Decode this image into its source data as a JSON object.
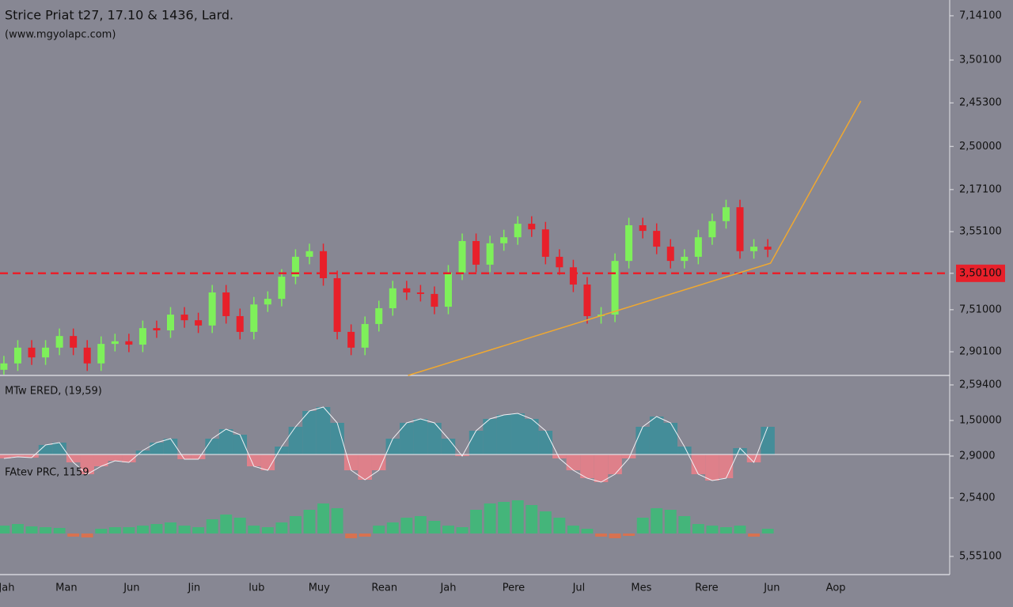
{
  "chart_data": [
    {
      "type": "candlestick",
      "title": "Strice Priat t27, 17.10 & 1436, Lard.",
      "subtitle": "(www.mgyolapc.com)",
      "open": [
        1.5,
        3.2,
        7.4,
        4.8,
        7.4,
        10.5,
        7.4,
        3.2,
        8.4,
        9.1,
        8.2,
        12.6,
        12.0,
        16.2,
        14.7,
        13.3,
        22.1,
        15.8,
        11.6,
        18.9,
        20.4,
        26.3,
        31.6,
        33.1,
        25.9,
        11.6,
        7.4,
        13.7,
        17.9,
        23.2,
        22.1,
        21.7,
        18.3,
        27.4,
        35.8,
        29.5,
        35.2,
        36.8,
        40.4,
        38.9,
        31.6,
        28.8,
        24.2,
        15.8,
        16.2,
        30.5,
        40.0,
        38.5,
        34.3,
        30.5,
        31.6,
        36.8,
        41.1,
        44.8,
        33.1,
        34.3
      ],
      "high": [
        5.2,
        9.4,
        9.4,
        9.4,
        12.5,
        12.5,
        9.4,
        10.4,
        11.1,
        11.1,
        14.6,
        14.6,
        18.2,
        18.2,
        16.7,
        24.1,
        24.1,
        17.8,
        20.9,
        22.4,
        28.3,
        33.6,
        35.1,
        35.1,
        27.9,
        13.6,
        15.7,
        19.9,
        25.2,
        25.2,
        24.1,
        23.7,
        29.4,
        37.8,
        37.8,
        37.2,
        38.8,
        42.4,
        42.4,
        40.9,
        33.6,
        30.8,
        26.2,
        18.2,
        32.5,
        42.0,
        42.0,
        40.5,
        36.3,
        33.6,
        38.8,
        43.1,
        46.8,
        46.8,
        36.3,
        36.3
      ],
      "low": [
        0.2,
        1.2,
        2.8,
        2.8,
        5.4,
        5.4,
        1.2,
        1.2,
        6.4,
        6.2,
        6.2,
        10.0,
        10.0,
        12.7,
        11.3,
        11.3,
        13.8,
        9.6,
        9.6,
        16.9,
        18.4,
        24.3,
        29.6,
        23.9,
        9.6,
        5.4,
        5.4,
        11.7,
        15.9,
        20.1,
        19.7,
        16.3,
        16.3,
        25.4,
        27.5,
        27.5,
        33.2,
        34.8,
        36.9,
        29.6,
        26.8,
        22.2,
        13.8,
        13.8,
        14.2,
        28.5,
        36.5,
        32.3,
        28.5,
        28.5,
        29.6,
        34.8,
        39.1,
        31.1,
        31.1,
        31.5
      ],
      "close": [
        3.2,
        7.4,
        4.8,
        7.4,
        10.5,
        7.4,
        3.2,
        8.4,
        9.1,
        8.2,
        12.6,
        12.0,
        16.2,
        14.7,
        13.3,
        22.1,
        15.8,
        11.6,
        18.9,
        20.4,
        26.3,
        31.6,
        33.1,
        25.9,
        11.6,
        7.4,
        13.7,
        17.9,
        23.2,
        22.1,
        21.7,
        18.3,
        27.4,
        35.8,
        29.5,
        35.2,
        36.8,
        40.4,
        38.9,
        31.6,
        28.8,
        24.2,
        15.8,
        16.2,
        30.5,
        40.0,
        38.5,
        34.3,
        30.5,
        31.6,
        36.8,
        41.1,
        44.8,
        33.1,
        34.3,
        33.5
      ],
      "up_color": "#7ef05a",
      "down_color": "#e8202a",
      "xlim": [
        -0.28,
        68.1
      ],
      "xticks": [
        {
          "value": 0.2,
          "label": "Jah"
        },
        {
          "value": 4.5,
          "label": "Man"
        },
        {
          "value": 9.2,
          "label": "Jun"
        },
        {
          "value": 13.7,
          "label": "Jin"
        },
        {
          "value": 18.2,
          "label": "lub"
        },
        {
          "value": 22.7,
          "label": "Muy"
        },
        {
          "value": 27.4,
          "label": "Rean"
        },
        {
          "value": 32.0,
          "label": "Jah"
        },
        {
          "value": 36.7,
          "label": "Pere"
        },
        {
          "value": 41.4,
          "label": "Jul"
        },
        {
          "value": 45.9,
          "label": "Mes"
        },
        {
          "value": 50.6,
          "label": "Rere"
        },
        {
          "value": 55.3,
          "label": "Jun"
        },
        {
          "value": 59.9,
          "label": "Aop"
        }
      ],
      "ylim": [
        0,
        100
      ],
      "yticks": [
        {
          "value": 95.8,
          "label": "7,14100"
        },
        {
          "value": 84.0,
          "label": "3,50100"
        },
        {
          "value": 72.6,
          "label": "2,45300"
        },
        {
          "value": 61.0,
          "label": "2,50000"
        },
        {
          "value": 49.5,
          "label": "2,17100"
        },
        {
          "value": 38.3,
          "label": "3,55100"
        },
        {
          "value": 27.2,
          "label": "3,50100"
        },
        {
          "value": 17.5,
          "label": "7,51000"
        },
        {
          "value": 6.3,
          "label": "2,90100"
        }
      ],
      "hline": {
        "value": 27.2,
        "color": "#e8202a"
      },
      "trendline": {
        "x": [
          29.1,
          55.2,
          61.7
        ],
        "y": [
          0,
          29.9,
          73.1
        ],
        "color": "#f0a830"
      }
    },
    {
      "type": "bar",
      "label": "MTw ERED, (19,59)",
      "values": [
        -5,
        -3,
        -4,
        12,
        15,
        -10,
        -25,
        -15,
        -8,
        -10,
        5,
        15,
        20,
        -6,
        -6,
        20,
        32,
        25,
        -15,
        -20,
        10,
        35,
        55,
        60,
        40,
        -20,
        -32,
        -20,
        20,
        40,
        45,
        40,
        20,
        -2,
        30,
        45,
        50,
        52,
        45,
        30,
        -5,
        -20,
        -30,
        -35,
        -25,
        -5,
        35,
        48,
        40,
        10,
        -25,
        -33,
        -30,
        8,
        -10,
        35
      ],
      "up_color": "#3d8e9a",
      "down_color": "#e8808a",
      "outline": true,
      "ylim": [
        -40,
        100
      ],
      "yticks": [
        {
          "value": 88,
          "label": "2,59400"
        },
        {
          "value": 43,
          "label": "1,50000"
        },
        {
          "value": -2,
          "label": "2,9000"
        }
      ]
    },
    {
      "type": "bar",
      "label": "FAtev PRC, 1159",
      "values": [
        10,
        12,
        9,
        8,
        7,
        -4,
        -5,
        6,
        8,
        8,
        10,
        12,
        14,
        10,
        8,
        18,
        24,
        20,
        10,
        8,
        14,
        22,
        30,
        38,
        32,
        -6,
        -4,
        10,
        14,
        20,
        22,
        16,
        10,
        8,
        30,
        38,
        40,
        42,
        36,
        28,
        20,
        10,
        6,
        -4,
        -6,
        -3,
        20,
        32,
        30,
        22,
        12,
        10,
        8,
        10,
        -4,
        6
      ],
      "up_color": "#3dba78",
      "down_color": "#e0704a",
      "outline": false,
      "ylim": [
        -52,
        60
      ],
      "yticks": [
        {
          "value": 45,
          "label": "2,5400"
        },
        {
          "value": -29,
          "label": "5,55100"
        }
      ]
    }
  ]
}
